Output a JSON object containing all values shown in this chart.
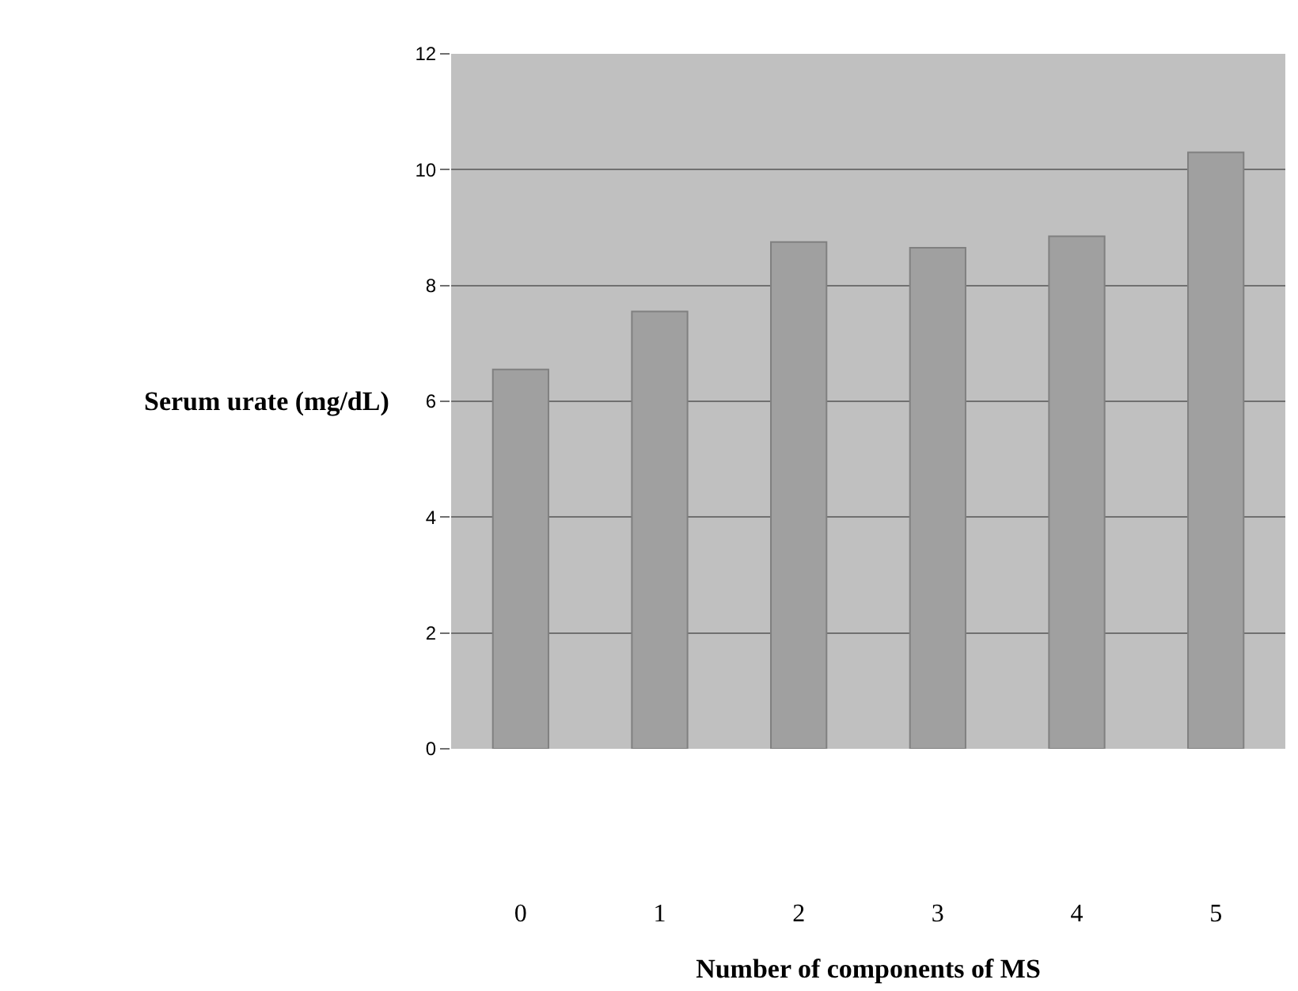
{
  "chart_data": {
    "type": "bar",
    "xlabel": "Number of components of MS",
    "ylabel": "Serum urate (mg/dL)",
    "categories": [
      "0",
      "1",
      "2",
      "3",
      "4",
      "5"
    ],
    "values": [
      6.55,
      7.55,
      8.75,
      8.65,
      8.85,
      10.3
    ],
    "color": "#a0a0a0",
    "ylim": [
      0,
      12
    ],
    "yticks": [
      0,
      2,
      4,
      6,
      8,
      10,
      12
    ],
    "grid": "y",
    "legend": false
  }
}
